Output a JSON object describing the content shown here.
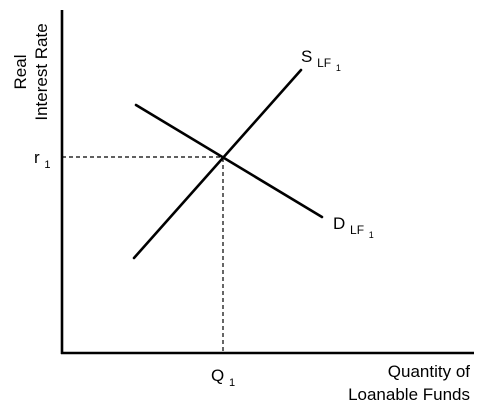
{
  "diagram": {
    "y_axis": {
      "label_line1": "Real",
      "label_line2": "Interest Rate"
    },
    "x_axis": {
      "label_line1": "Quantity of",
      "label_line2": "Loanable Funds"
    },
    "supply_curve": {
      "label_main": "S",
      "label_sub": "LF",
      "label_subsub": "1"
    },
    "demand_curve": {
      "label_main": "D",
      "label_sub": "LF",
      "label_subsub": "1"
    },
    "equilibrium": {
      "rate_main": "r",
      "rate_sub": "1",
      "quantity_main": "Q",
      "quantity_sub": "1"
    },
    "colors": {
      "line": "#000000",
      "background": "#ffffff"
    }
  }
}
